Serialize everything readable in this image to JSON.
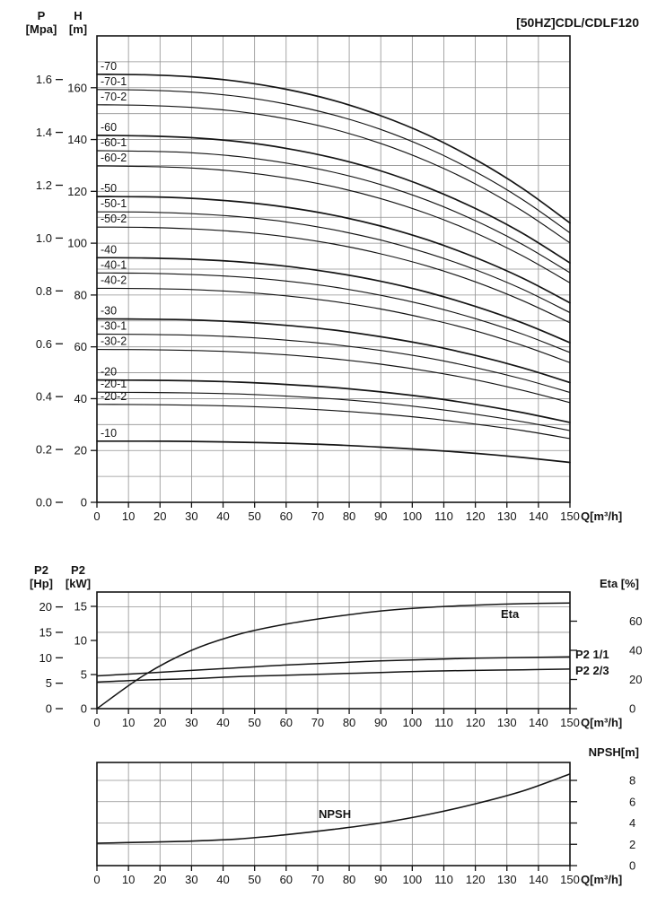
{
  "page": {
    "background": "#ffffff",
    "ink": "#141414",
    "grid": "#909090"
  },
  "chart_data": {
    "x_ticks": [
      0,
      10,
      20,
      30,
      40,
      50,
      60,
      70,
      80,
      90,
      100,
      110,
      120,
      130,
      140,
      150
    ],
    "head": {
      "type": "line",
      "title": "[50HZ]CDL/CDLF120",
      "xlabel": "Q[m³/h]",
      "xlim": [
        0,
        150
      ],
      "p_axis": {
        "label": "P",
        "unit": "[Mpa]",
        "ticks": [
          "0.0",
          "0.2",
          "0.4",
          "0.6",
          "0.8",
          "1.0",
          "1.2",
          "1.4",
          "1.6"
        ]
      },
      "h_axis": {
        "label": "H",
        "unit": "[m]",
        "ticks": [
          0,
          20,
          40,
          60,
          80,
          100,
          120,
          140,
          160
        ],
        "lim": [
          0,
          180
        ]
      },
      "x": [
        0,
        15,
        30,
        45,
        60,
        75,
        90,
        105,
        120,
        135,
        150
      ],
      "series": [
        {
          "name": "-70",
          "values": [
            165.2,
            165.0,
            164.2,
            162.4,
            159.4,
            155.1,
            149.2,
            141.7,
            132.3,
            121.1,
            107.8
          ]
        },
        {
          "name": "-70-1",
          "values": [
            159.3,
            159.1,
            158.3,
            156.6,
            153.7,
            149.5,
            143.9,
            136.6,
            127.6,
            116.8,
            104.0
          ]
        },
        {
          "name": "-70-2",
          "values": [
            153.4,
            153.2,
            152.4,
            150.8,
            148.0,
            144.0,
            138.5,
            131.5,
            122.9,
            112.4,
            100.1
          ]
        },
        {
          "name": "-60",
          "values": [
            141.6,
            141.4,
            140.7,
            139.2,
            136.6,
            132.9,
            127.9,
            121.4,
            113.4,
            103.8,
            92.4
          ]
        },
        {
          "name": "-60-1",
          "values": [
            135.7,
            135.5,
            134.9,
            133.4,
            130.9,
            127.4,
            122.6,
            116.4,
            108.7,
            99.5,
            88.6
          ]
        },
        {
          "name": "-60-2",
          "values": [
            129.8,
            129.6,
            129.0,
            127.6,
            125.2,
            121.8,
            117.2,
            111.3,
            104.0,
            95.1,
            84.7
          ]
        },
        {
          "name": "-50",
          "values": [
            118.0,
            117.9,
            117.3,
            116.0,
            113.9,
            110.8,
            106.6,
            101.2,
            94.5,
            86.5,
            77.0
          ]
        },
        {
          "name": "-50-1",
          "values": [
            112.1,
            112.0,
            111.4,
            110.2,
            108.2,
            105.2,
            101.2,
            96.1,
            89.8,
            82.2,
            73.2
          ]
        },
        {
          "name": "-50-2",
          "values": [
            106.2,
            106.1,
            105.5,
            104.4,
            102.5,
            99.7,
            95.9,
            91.1,
            85.1,
            77.8,
            69.3
          ]
        },
        {
          "name": "-40",
          "values": [
            94.4,
            94.3,
            93.8,
            92.8,
            91.1,
            88.6,
            85.3,
            81.0,
            75.6,
            69.2,
            61.6
          ]
        },
        {
          "name": "-40-1",
          "values": [
            88.5,
            88.4,
            87.9,
            87.0,
            85.4,
            83.1,
            79.9,
            75.9,
            70.9,
            64.9,
            57.8
          ]
        },
        {
          "name": "-40-2",
          "values": [
            82.6,
            82.5,
            82.1,
            81.2,
            79.7,
            77.5,
            74.6,
            70.8,
            66.2,
            60.5,
            53.9
          ]
        },
        {
          "name": "-30",
          "values": [
            70.8,
            70.7,
            70.4,
            69.6,
            68.3,
            66.5,
            63.9,
            60.7,
            56.7,
            51.9,
            46.2
          ]
        },
        {
          "name": "-30-1",
          "values": [
            64.9,
            64.8,
            64.5,
            63.8,
            62.6,
            60.9,
            58.6,
            55.7,
            52.0,
            47.6,
            42.4
          ]
        },
        {
          "name": "-30-2",
          "values": [
            59.0,
            58.9,
            58.6,
            58.0,
            56.9,
            55.4,
            53.3,
            50.6,
            47.3,
            43.2,
            38.5
          ]
        },
        {
          "name": "-20",
          "values": [
            47.2,
            47.1,
            46.9,
            46.4,
            45.5,
            44.3,
            42.6,
            40.5,
            37.8,
            34.6,
            30.8
          ]
        },
        {
          "name": "-20-1",
          "values": [
            42.5,
            42.4,
            42.2,
            41.8,
            41.0,
            39.9,
            38.4,
            36.4,
            34.0,
            31.1,
            27.7
          ]
        },
        {
          "name": "-20-2",
          "values": [
            37.8,
            37.7,
            37.5,
            37.1,
            36.4,
            35.4,
            34.1,
            32.4,
            30.2,
            27.7,
            24.6
          ]
        },
        {
          "name": "-10",
          "values": [
            23.6,
            23.6,
            23.5,
            23.2,
            22.8,
            22.2,
            21.3,
            20.2,
            18.9,
            17.3,
            15.4
          ]
        }
      ]
    },
    "power": {
      "type": "line",
      "xlabel": "Q[m³/h]",
      "hp_axis": {
        "label": "P2",
        "unit": "[Hp]",
        "ticks": [
          0,
          5,
          10,
          15,
          20
        ]
      },
      "kw_axis": {
        "label": "P2",
        "unit": "[kW]",
        "ticks": [
          0,
          5,
          10,
          15
        ]
      },
      "eta_axis": {
        "title": "Eta [%]",
        "ticks": [
          0,
          20,
          40,
          60
        ]
      },
      "x": [
        0,
        15,
        30,
        45,
        60,
        75,
        90,
        105,
        120,
        135,
        150
      ],
      "series": [
        {
          "name": "Eta",
          "axis": "eta",
          "values": [
            0,
            23,
            40,
            51,
            58,
            63,
            67,
            69.5,
            71,
            72,
            72.5
          ]
        },
        {
          "name": "P2 1/1",
          "axis": "kw",
          "values": [
            4.8,
            5.2,
            5.6,
            6.0,
            6.4,
            6.7,
            7.0,
            7.2,
            7.4,
            7.5,
            7.6
          ]
        },
        {
          "name": "P2 2/3",
          "axis": "kw",
          "values": [
            3.9,
            4.2,
            4.4,
            4.7,
            4.9,
            5.1,
            5.3,
            5.5,
            5.6,
            5.7,
            5.8
          ]
        }
      ]
    },
    "npsh": {
      "type": "line",
      "xlabel": "Q[m³/h]",
      "axis": {
        "title": "NPSH[m]",
        "ticks": [
          0,
          2,
          4,
          6,
          8
        ]
      },
      "x": [
        0,
        15,
        30,
        45,
        60,
        75,
        90,
        105,
        120,
        135,
        150
      ],
      "series": [
        {
          "name": "NPSH",
          "values": [
            2.1,
            2.2,
            2.3,
            2.5,
            2.9,
            3.4,
            4.0,
            4.8,
            5.8,
            7.0,
            8.6
          ]
        }
      ]
    }
  }
}
